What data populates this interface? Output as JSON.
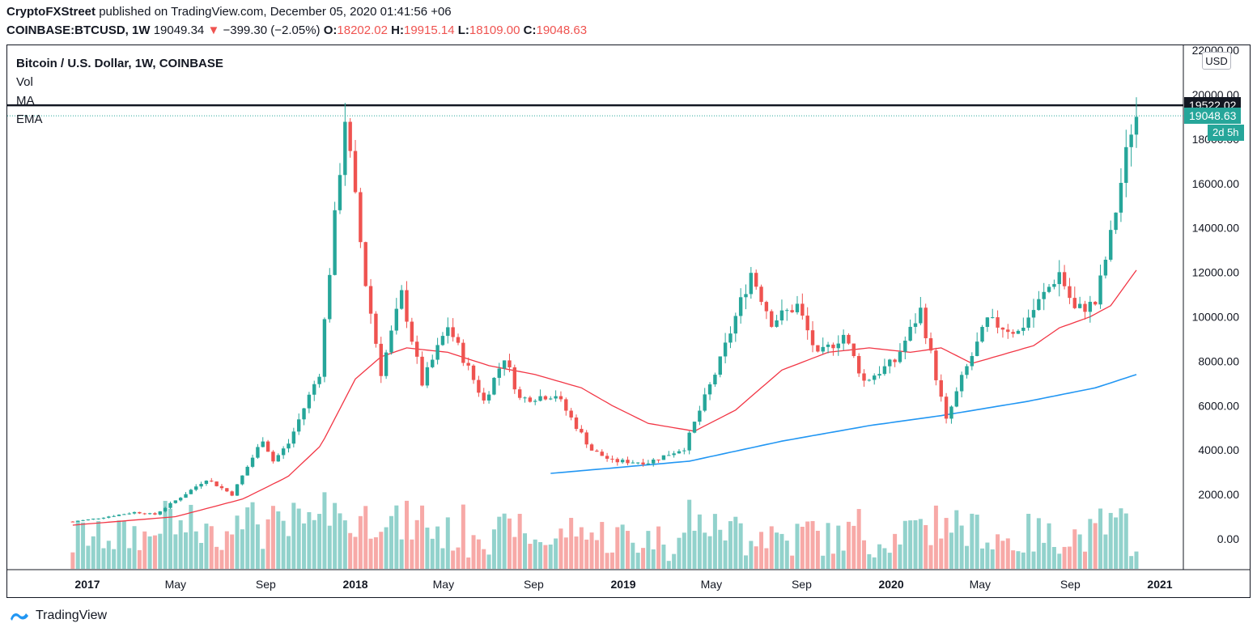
{
  "header": {
    "author": "CryptoFXStreet",
    "published_text": "published on TradingView.com, December 05, 2020 01:41:56 +06",
    "symbol": "COINBASE:BTCUSD, 1W",
    "last": "19049.34",
    "change_arrow": "▼",
    "change": "−399.30 (−2.05%)",
    "o_label": "O:",
    "o_value": "18202.02",
    "h_label": "H:",
    "h_value": "19915.14",
    "l_label": "L:",
    "l_value": "18109.00",
    "c_label": "C:",
    "c_value": "19048.63"
  },
  "legend": {
    "title": "Bitcoin / U.S. Dollar, 1W, COINBASE",
    "vol": "Vol",
    "ma": "MA",
    "ema": "EMA"
  },
  "currency_button": "USD",
  "price_labels": {
    "resistance": "19522.02",
    "current": "19048.63",
    "countdown": "2d 5h"
  },
  "footer": {
    "brand": "TradingView"
  },
  "colors": {
    "up": "#26a69a",
    "down": "#ef5350",
    "ema": "#f23645",
    "ma": "#2196f3",
    "resistance": "#131722"
  },
  "chart_data": {
    "type": "candlestick",
    "title": "Bitcoin / U.S. Dollar, 1W, COINBASE",
    "y_ticks": [
      "22000.00",
      "20000.00",
      "18000.00",
      "16000.00",
      "14000.00",
      "12000.00",
      "10000.00",
      "8000.00",
      "6000.00",
      "4000.00",
      "2000.00",
      "0.00"
    ],
    "x_ticks": [
      "2017",
      "May",
      "Sep",
      "2018",
      "May",
      "Sep",
      "2019",
      "May",
      "Sep",
      "2020",
      "May",
      "Sep",
      "2021"
    ],
    "ylim": [
      -1000,
      22500
    ],
    "resistance_level": 19522.02,
    "series": [
      {
        "name": "price",
        "anchors": [
          [
            "2016-12-12",
            780
          ],
          [
            "2017-01-09",
            900
          ],
          [
            "2017-03-06",
            1200
          ],
          [
            "2017-04-03",
            1100
          ],
          [
            "2017-05-22",
            2200
          ],
          [
            "2017-06-12",
            2700
          ],
          [
            "2017-07-17",
            2000
          ],
          [
            "2017-08-28",
            4500
          ],
          [
            "2017-09-11",
            3500
          ],
          [
            "2017-10-02",
            4300
          ],
          [
            "2017-11-13",
            7500
          ],
          [
            "2017-12-18",
            19000
          ],
          [
            "2018-01-15",
            11500
          ],
          [
            "2018-02-05",
            7500
          ],
          [
            "2018-03-05",
            11000
          ],
          [
            "2018-04-02",
            7000
          ],
          [
            "2018-05-07",
            9600
          ],
          [
            "2018-06-25",
            6200
          ],
          [
            "2018-07-23",
            8200
          ],
          [
            "2018-08-13",
            6300
          ],
          [
            "2018-10-01",
            6500
          ],
          [
            "2018-11-19",
            4000
          ],
          [
            "2018-12-17",
            3500
          ],
          [
            "2019-02-04",
            3450
          ],
          [
            "2019-03-25",
            4100
          ],
          [
            "2019-05-13",
            8000
          ],
          [
            "2019-06-24",
            12000
          ],
          [
            "2019-07-22",
            9800
          ],
          [
            "2019-08-26",
            10500
          ],
          [
            "2019-09-23",
            8200
          ],
          [
            "2019-10-28",
            9200
          ],
          [
            "2019-11-25",
            7100
          ],
          [
            "2020-01-06",
            8000
          ],
          [
            "2020-02-10",
            10300
          ],
          [
            "2020-03-16",
            5300
          ],
          [
            "2020-04-06",
            7200
          ],
          [
            "2020-05-11",
            9800
          ],
          [
            "2020-06-22",
            9300
          ],
          [
            "2020-07-27",
            11000
          ],
          [
            "2020-08-17",
            12000
          ],
          [
            "2020-09-07",
            10300
          ],
          [
            "2020-10-05",
            10600
          ],
          [
            "2020-10-26",
            13600
          ],
          [
            "2020-11-23",
            18500
          ],
          [
            "2020-11-30",
            19049
          ]
        ]
      },
      {
        "name": "EMA",
        "anchors": [
          [
            "2016-12-12",
            620
          ],
          [
            "2017-05-01",
            1000
          ],
          [
            "2017-08-01",
            1800
          ],
          [
            "2017-10-01",
            2800
          ],
          [
            "2017-11-15",
            4200
          ],
          [
            "2018-01-01",
            7200
          ],
          [
            "2018-02-05",
            8200
          ],
          [
            "2018-03-12",
            8600
          ],
          [
            "2018-05-07",
            8400
          ],
          [
            "2018-07-02",
            7800
          ],
          [
            "2018-09-03",
            7400
          ],
          [
            "2018-11-05",
            6800
          ],
          [
            "2018-12-17",
            6000
          ],
          [
            "2019-02-04",
            5200
          ],
          [
            "2019-04-08",
            4850
          ],
          [
            "2019-06-03",
            5800
          ],
          [
            "2019-08-05",
            7600
          ],
          [
            "2019-10-07",
            8400
          ],
          [
            "2019-12-02",
            8600
          ],
          [
            "2020-01-27",
            8400
          ],
          [
            "2020-03-09",
            8600
          ],
          [
            "2020-04-20",
            7900
          ],
          [
            "2020-06-01",
            8300
          ],
          [
            "2020-07-13",
            8700
          ],
          [
            "2020-08-17",
            9500
          ],
          [
            "2020-09-28",
            10000
          ],
          [
            "2020-10-26",
            10500
          ],
          [
            "2020-11-30",
            12100
          ]
        ]
      },
      {
        "name": "MA",
        "anchors": [
          [
            "2018-09-24",
            2950
          ],
          [
            "2018-12-03",
            3150
          ],
          [
            "2019-04-01",
            3500
          ],
          [
            "2019-08-05",
            4400
          ],
          [
            "2019-12-02",
            5100
          ],
          [
            "2020-03-09",
            5550
          ],
          [
            "2020-07-06",
            6200
          ],
          [
            "2020-10-05",
            6800
          ],
          [
            "2020-11-30",
            7400
          ]
        ]
      }
    ]
  }
}
